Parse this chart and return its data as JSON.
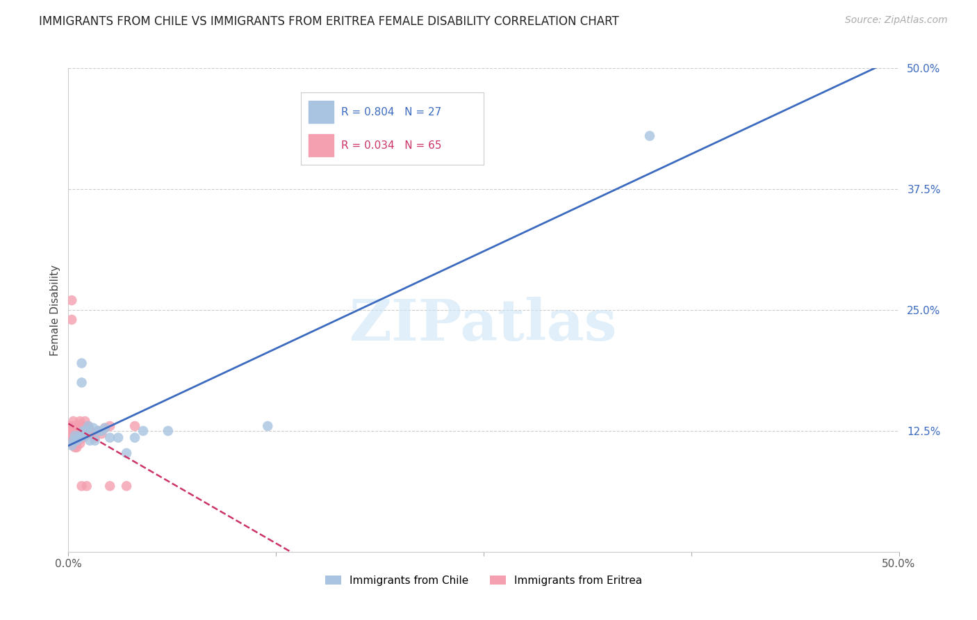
{
  "title": "IMMIGRANTS FROM CHILE VS IMMIGRANTS FROM ERITREA FEMALE DISABILITY CORRELATION CHART",
  "source": "Source: ZipAtlas.com",
  "ylabel": "Female Disability",
  "watermark": "ZIPatlas",
  "xlim": [
    0.0,
    0.5
  ],
  "ylim": [
    0.0,
    0.5
  ],
  "xticks": [
    0.0,
    0.125,
    0.25,
    0.375,
    0.5
  ],
  "yticks": [
    0.125,
    0.25,
    0.375,
    0.5
  ],
  "xticklabels": [
    "0.0%",
    "",
    "",
    "",
    "50.0%"
  ],
  "yticklabels": [
    "12.5%",
    "25.0%",
    "37.5%",
    "50.0%"
  ],
  "grid_color": "#cccccc",
  "background_color": "#ffffff",
  "chile_color": "#a8c4e0",
  "eritrea_color": "#f4a0b0",
  "chile_line_color": "#3b6abf",
  "eritrea_line_color": "#cc3366",
  "chile_R": 0.804,
  "chile_N": 27,
  "eritrea_R": 0.034,
  "eritrea_N": 65,
  "legend_label_chile": "Immigrants from Chile",
  "legend_label_eritrea": "Immigrants from Eritrea",
  "chile_x": [
    0.002,
    0.003,
    0.004,
    0.005,
    0.006,
    0.007,
    0.008,
    0.008,
    0.009,
    0.009,
    0.01,
    0.011,
    0.012,
    0.013,
    0.015,
    0.016,
    0.018,
    0.02,
    0.022,
    0.025,
    0.03,
    0.035,
    0.04,
    0.045,
    0.06,
    0.12,
    0.35
  ],
  "chile_y": [
    0.11,
    0.115,
    0.12,
    0.115,
    0.118,
    0.118,
    0.195,
    0.175,
    0.125,
    0.12,
    0.12,
    0.125,
    0.13,
    0.115,
    0.128,
    0.115,
    0.125,
    0.125,
    0.128,
    0.118,
    0.118,
    0.102,
    0.118,
    0.125,
    0.125,
    0.13,
    0.43
  ],
  "eritrea_x": [
    0.001,
    0.001,
    0.002,
    0.002,
    0.002,
    0.002,
    0.002,
    0.003,
    0.003,
    0.003,
    0.003,
    0.003,
    0.003,
    0.004,
    0.004,
    0.004,
    0.004,
    0.004,
    0.004,
    0.004,
    0.005,
    0.005,
    0.005,
    0.005,
    0.005,
    0.005,
    0.005,
    0.006,
    0.006,
    0.006,
    0.006,
    0.006,
    0.006,
    0.007,
    0.007,
    0.007,
    0.007,
    0.007,
    0.007,
    0.007,
    0.008,
    0.008,
    0.008,
    0.008,
    0.009,
    0.009,
    0.009,
    0.01,
    0.01,
    0.01,
    0.011,
    0.011,
    0.012,
    0.012,
    0.013,
    0.014,
    0.015,
    0.016,
    0.018,
    0.02,
    0.022,
    0.025,
    0.025,
    0.035,
    0.04
  ],
  "eritrea_y": [
    0.13,
    0.12,
    0.26,
    0.24,
    0.13,
    0.128,
    0.115,
    0.135,
    0.128,
    0.125,
    0.118,
    0.11,
    0.12,
    0.13,
    0.128,
    0.125,
    0.12,
    0.115,
    0.112,
    0.108,
    0.13,
    0.128,
    0.125,
    0.12,
    0.118,
    0.115,
    0.108,
    0.13,
    0.128,
    0.125,
    0.12,
    0.118,
    0.115,
    0.135,
    0.132,
    0.128,
    0.125,
    0.122,
    0.118,
    0.112,
    0.13,
    0.128,
    0.12,
    0.068,
    0.13,
    0.125,
    0.118,
    0.135,
    0.128,
    0.12,
    0.13,
    0.068,
    0.13,
    0.128,
    0.125,
    0.122,
    0.12,
    0.118,
    0.125,
    0.122,
    0.128,
    0.13,
    0.068,
    0.068,
    0.13
  ]
}
